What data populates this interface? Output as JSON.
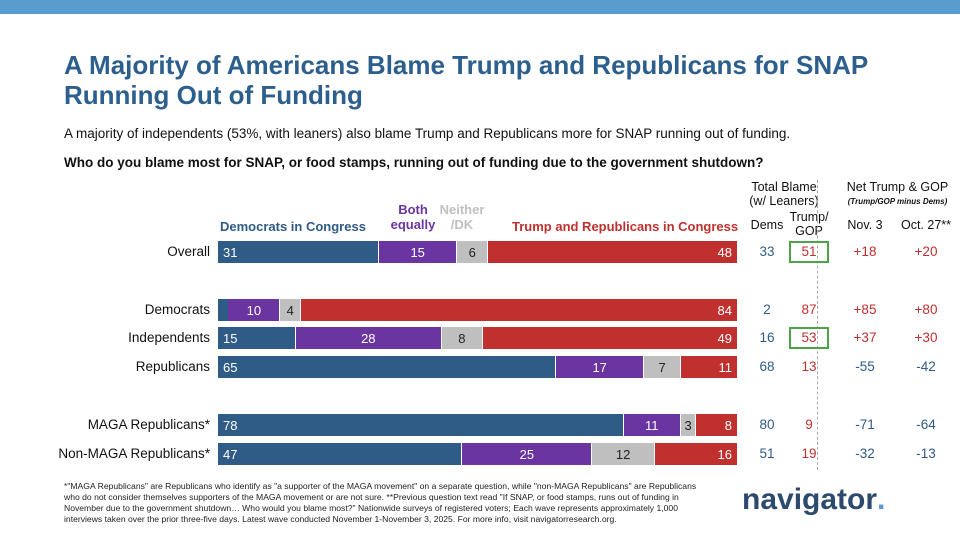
{
  "title": "A Majority of Americans Blame Trump and Republicans for SNAP Running Out of Funding",
  "subtitle": "A majority of independents (53%, with leaners) also blame Trump and Republicans more for SNAP running out of funding.",
  "question": "Who do you blame most for SNAP, or food stamps, running out of funding due to the government shutdown?",
  "columns": {
    "total_blame": "Total Blame (w/ Leaners)",
    "dems": "Dems",
    "trump_gop": "Trump/ GOP",
    "net": "Net Trump & GOP",
    "net_sub": "(Trump/GOP minus Dems)",
    "nov3": "Nov. 3",
    "oct27": "Oct. 27**"
  },
  "chart_data": {
    "type": "bar",
    "stacked": true,
    "orientation": "horizontal",
    "categories": [
      "Overall",
      "Democrats",
      "Independents",
      "Republicans",
      "MAGA Republicans*",
      "Non-MAGA Republicans*"
    ],
    "series": [
      {
        "name": "Democrats in Congress",
        "color": "#2f5b87",
        "values": [
          31,
          2,
          15,
          65,
          78,
          47
        ],
        "labels": [
          "31",
          "",
          "15",
          "65",
          "78",
          "47"
        ]
      },
      {
        "name": "Both equally",
        "color": "#6a35a0",
        "values": [
          15,
          10,
          28,
          17,
          11,
          25
        ],
        "labels": [
          "15",
          "10",
          "28",
          "17",
          "11",
          "25"
        ]
      },
      {
        "name": "Neither /DK",
        "color": "#bfbfbf",
        "values": [
          6,
          4,
          8,
          7,
          3,
          12
        ],
        "labels": [
          "6",
          "4",
          "8",
          "7",
          "3",
          "12"
        ]
      },
      {
        "name": "Trump and Republicans in Congress",
        "color": "#c0302f",
        "values": [
          48,
          84,
          49,
          11,
          8,
          16
        ],
        "labels": [
          "48",
          "84",
          "49",
          "11",
          "8",
          "16"
        ]
      }
    ],
    "total_blame_dems": [
      "33",
      "2",
      "16",
      "68",
      "80",
      "51"
    ],
    "total_blame_trump": [
      "51",
      "87",
      "53",
      "13",
      "9",
      "19"
    ],
    "highlighted_trump": [
      true,
      false,
      true,
      false,
      false,
      false
    ],
    "net_nov3": [
      "+18",
      "+85",
      "+37",
      "-55",
      "-71",
      "-32"
    ],
    "net_oct27": [
      "+20",
      "+80",
      "+30",
      "-42",
      "-64",
      "-13"
    ]
  },
  "colors": {
    "positive": "#c0302f",
    "negative": "#2f5b87",
    "highlight_box": "#4ea24a"
  },
  "footnote": "*\"MAGA Republicans\" are Republicans who identify as \"a supporter of the MAGA movement\" on a separate question, while \"non-MAGA Republicans\" are Republicans who do not consider themselves supporters of the MAGA movement or are not sure. **Previous question text read \"If SNAP, or food stamps, runs out of funding in November due to the government shutdown… Who would you blame most?\" Nationwide surveys of registered voters; Each wave represents approximately 1,000 interviews taken over the prior three-five days. Latest wave conducted November 1-November 3, 2025. For more info, visit navigatorresearch.org.",
  "logo": "navigator"
}
